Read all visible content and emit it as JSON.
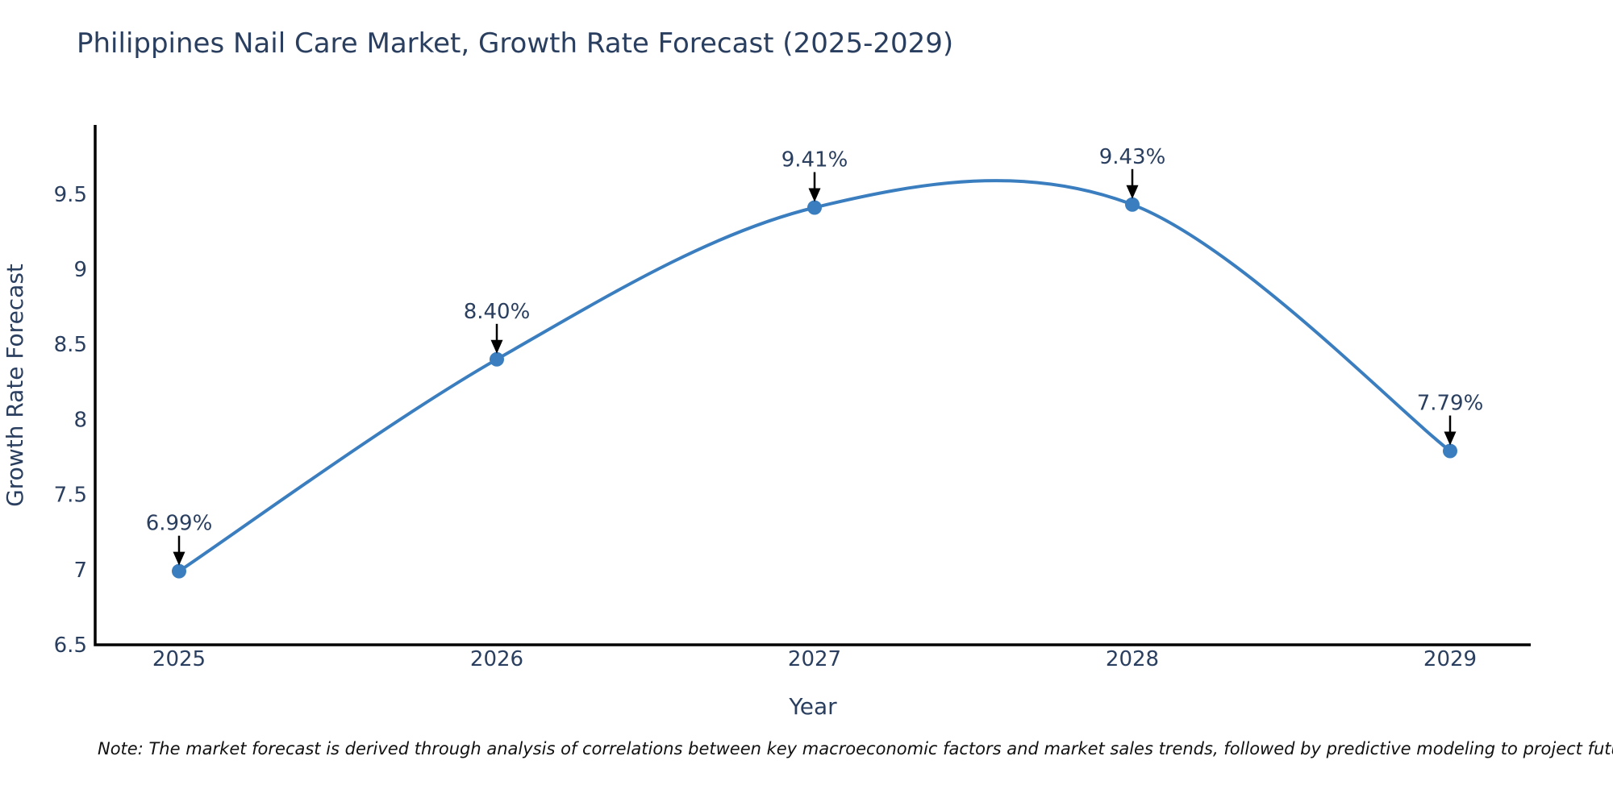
{
  "chart_data": {
    "type": "line",
    "title": "Philippines Nail Care Market, Growth Rate Forecast (2025-2029)",
    "xlabel": "Year",
    "ylabel": "Growth Rate Forecast",
    "categories": [
      "2025",
      "2026",
      "2027",
      "2028",
      "2029"
    ],
    "values": [
      6.99,
      8.4,
      9.41,
      9.43,
      7.79
    ],
    "point_labels": [
      "6.99%",
      "8.40%",
      "9.41%",
      "9.43%",
      "7.79%"
    ],
    "series_name": "Growth Rate Forecast",
    "line_shape": "spline",
    "markers": true,
    "grid": false,
    "legend_position": "none",
    "ytick_values": [
      6.5,
      7,
      7.5,
      8,
      8.5,
      9,
      9.5
    ],
    "ytick_labels": [
      "6.5",
      "7",
      "7.5",
      "8",
      "8.5",
      "9",
      "9.5"
    ],
    "ylim": [
      6.5,
      9.96
    ],
    "note": "Note: The market forecast is derived through analysis of correlations between key macroeconomic factors and market sales trends, followed by predictive modeling to project future sales",
    "colors": {
      "line": "#3a7ebf",
      "marker": "#3a7ebf",
      "text": "#2a3f5f",
      "axis": "#000000",
      "annotation_arrow": "#000000",
      "note_text": "#111111",
      "background": "#ffffff"
    }
  }
}
